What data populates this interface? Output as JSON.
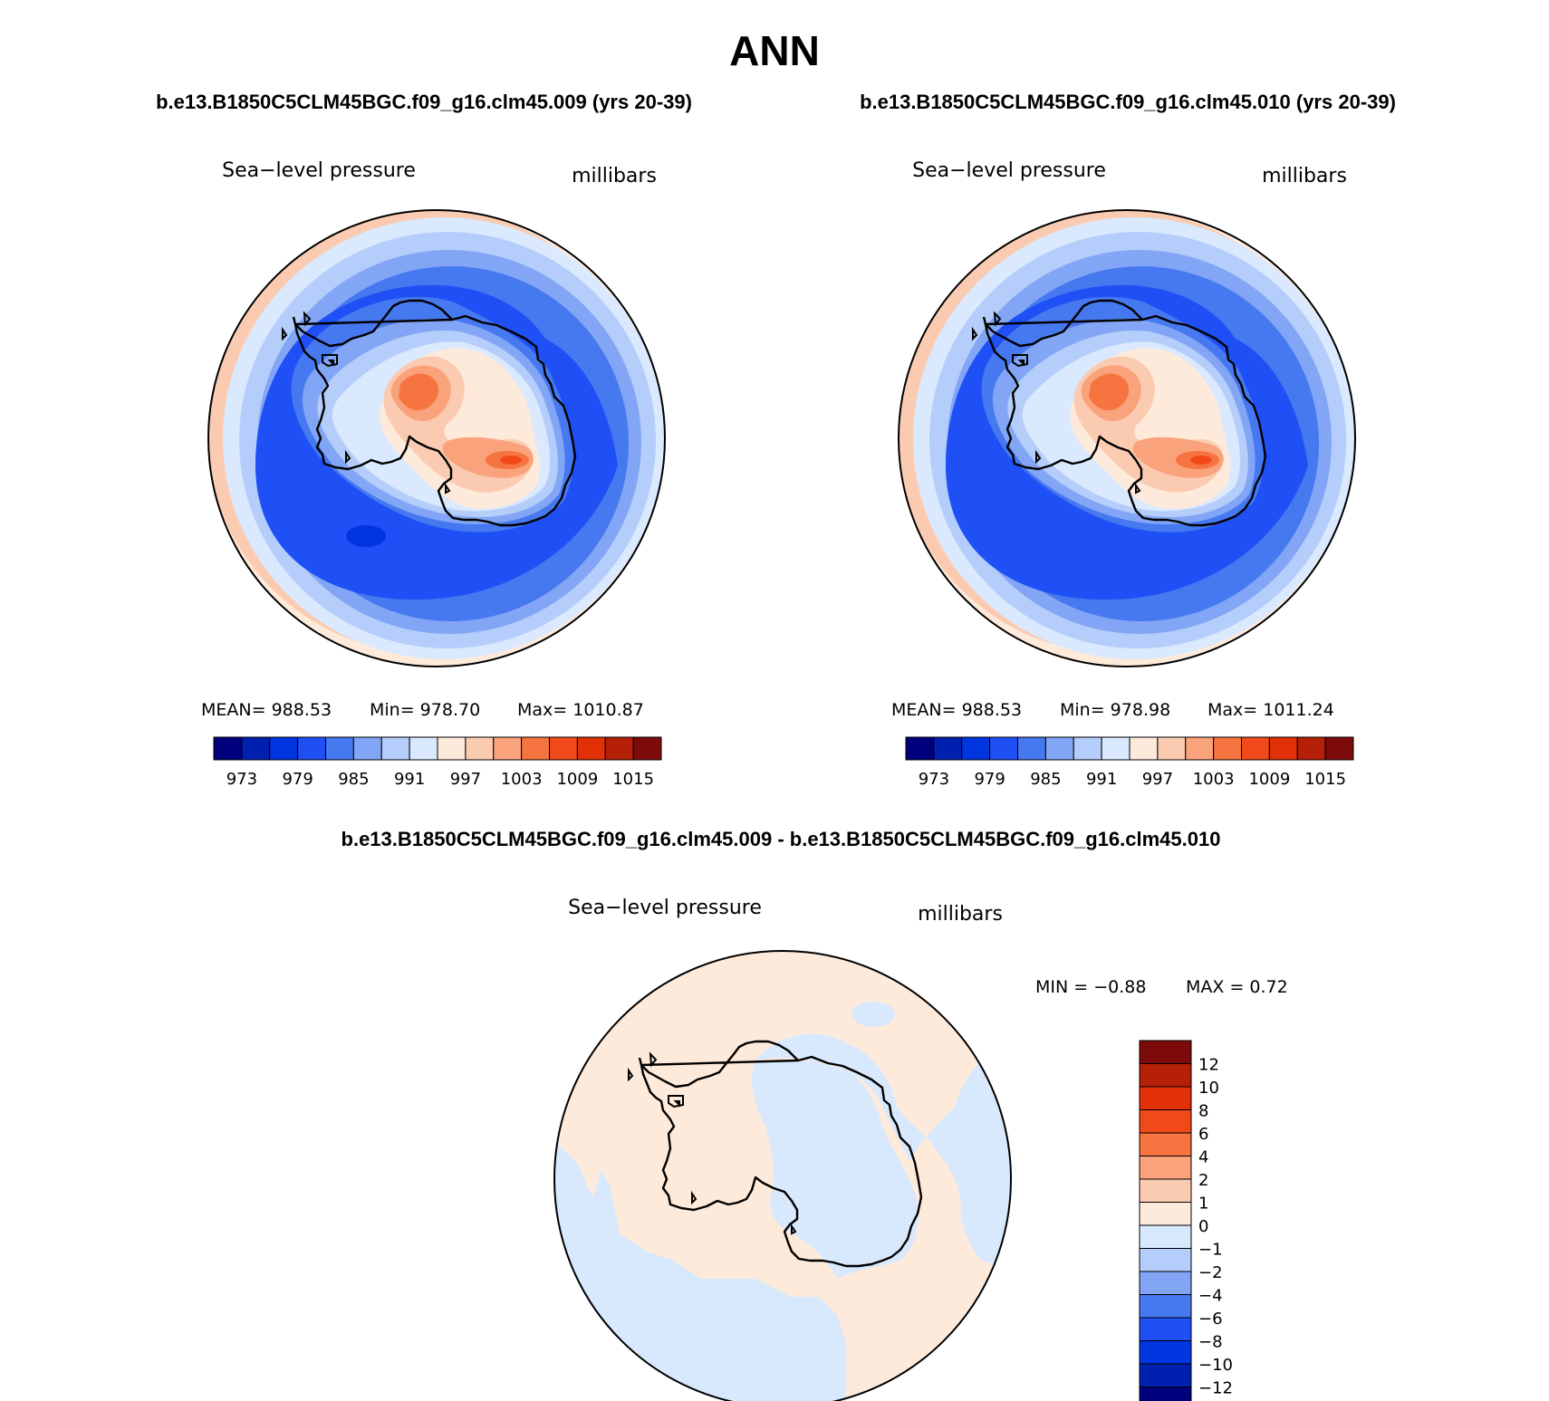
{
  "figure": {
    "title": "ANN",
    "case_a_title": "b.e13.B1850C5CLM45BGC.f09_g16.clm45.009 (yrs 20-39)",
    "case_b_title": "b.e13.B1850C5CLM45BGC.f09_g16.clm45.010 (yrs 20-39)",
    "diff_title": "b.e13.B1850C5CLM45BGC.f09_g16.clm45.009 - b.e13.B1850C5CLM45BGC.f09_g16.clm45.010"
  },
  "colors": {
    "abs_fills": [
      "#00007d",
      "#0021b0",
      "#0035e0",
      "#1e50f5",
      "#4678f0",
      "#82a6f5",
      "#b4cdfa",
      "#dae9fd",
      "#feeadb",
      "#fbcbb1",
      "#f9a27c",
      "#f6743f",
      "#f2491a",
      "#e23008",
      "#b61f08",
      "#7e0b0b"
    ],
    "diff_fills": [
      "#00007d",
      "#0021b0",
      "#0035e0",
      "#1e50f5",
      "#4678f0",
      "#82a6f5",
      "#b4cdfa",
      "#d8e9fd",
      "#feeadb",
      "#fbcbb1",
      "#f9a27c",
      "#f6743f",
      "#f2491a",
      "#e23008",
      "#b61f08",
      "#7e0b0b"
    ],
    "coastline": "#000000"
  },
  "panels": [
    {
      "id": "case-a",
      "variable": "Sea−level pressure",
      "units": "millibars",
      "stats": {
        "mean": "988.53",
        "min": "978.70",
        "max": "1010.87"
      },
      "stats_text": {
        "mean": "MEAN=  988.53",
        "min": "Min=  978.70",
        "max": "Max=  1010.87"
      }
    },
    {
      "id": "case-b",
      "variable": "Sea−level pressure",
      "units": "millibars",
      "stats": {
        "mean": "988.53",
        "min": "978.98",
        "max": "1011.24"
      },
      "stats_text": {
        "mean": "MEAN=  988.53",
        "min": "Min=  978.98",
        "max": "Max=  1011.24"
      }
    },
    {
      "id": "difference",
      "variable": "Sea−level pressure",
      "units": "millibars",
      "stats": {
        "min": "−0.88",
        "max": "0.72"
      },
      "stats_text": {
        "min": "MIN =   −0.88",
        "max": "MAX =    0.72"
      }
    }
  ],
  "colorbars": {
    "abs_tick_labels": [
      "973",
      "979",
      "985",
      "991",
      "997",
      "1003",
      "1009",
      "1015"
    ],
    "diff_tick_labels": [
      "12",
      "10",
      "8",
      "6",
      "4",
      "2",
      "1",
      "0",
      "−1",
      "−2",
      "−4",
      "−6",
      "−8",
      "−10",
      "−12"
    ]
  }
}
